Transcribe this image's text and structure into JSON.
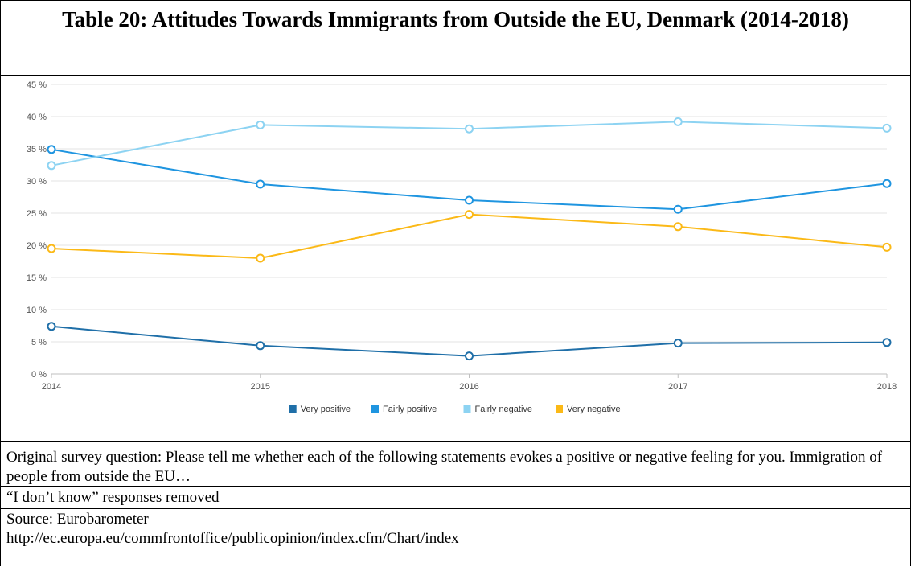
{
  "title": "Table 20: Attitudes Towards Immigrants from Outside the EU, Denmark (2014-2018)",
  "chart_data": {
    "type": "line",
    "x": [
      "2014",
      "2015",
      "2016",
      "2017",
      "2018"
    ],
    "y_ticks": [
      "0 %",
      "5 %",
      "10 %",
      "15 %",
      "20 %",
      "25 %",
      "30 %",
      "35 %",
      "40 %",
      "45 %"
    ],
    "ylim": [
      0,
      45
    ],
    "grid": true,
    "legend_position": "bottom",
    "series": [
      {
        "name": "Very positive",
        "color": "#1f6fa8",
        "values": [
          7.4,
          4.4,
          2.8,
          4.8,
          4.9
        ]
      },
      {
        "name": "Fairly positive",
        "color": "#1f95e0",
        "values": [
          34.9,
          29.5,
          27.0,
          25.6,
          29.6
        ]
      },
      {
        "name": "Fairly negative",
        "color": "#8dd3f2",
        "values": [
          32.4,
          38.7,
          38.1,
          39.2,
          38.2
        ]
      },
      {
        "name": "Very negative",
        "color": "#fbb917",
        "values": [
          19.5,
          18.0,
          24.8,
          22.9,
          19.7
        ]
      }
    ]
  },
  "notes": {
    "question": "Original survey question: Please tell me whether each of the following statements evokes a positive or negative feeling for you. Immigration of people from outside the EU…",
    "dont_know": "“I don’t know” responses removed",
    "source": "Source: Eurobarometer",
    "url": "http://ec.europa.eu/commfrontoffice/publicopinion/index.cfm/Chart/index"
  }
}
